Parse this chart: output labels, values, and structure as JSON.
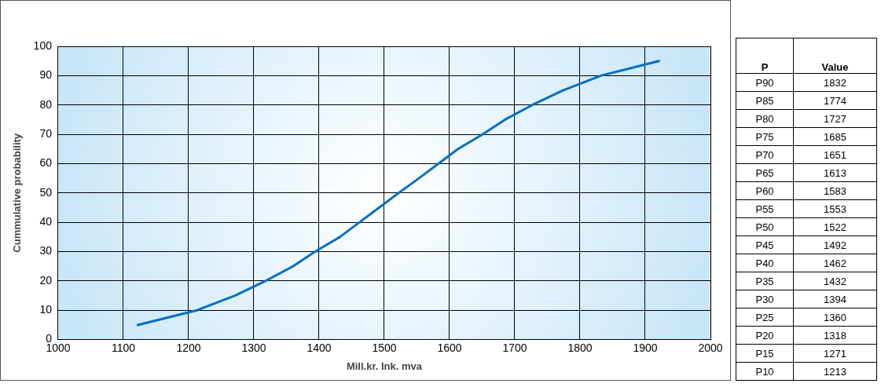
{
  "chart_data": [
    {
      "type": "line",
      "xlabel": "Mill.kr. Ink. mva",
      "ylabel": "Cummulative probability",
      "x": [
        1122,
        1213,
        1271,
        1318,
        1360,
        1394,
        1432,
        1462,
        1492,
        1522,
        1553,
        1583,
        1613,
        1651,
        1685,
        1727,
        1774,
        1832,
        1921
      ],
      "series": [
        {
          "color": "#0070c0",
          "values": [
            5,
            10,
            15,
            20,
            25,
            30,
            35,
            40,
            45,
            50,
            55,
            60,
            65,
            70,
            75,
            80,
            85,
            90,
            95
          ]
        }
      ],
      "xlim": [
        1000,
        2000
      ],
      "xticks": [
        1000,
        1100,
        1200,
        1300,
        1400,
        1500,
        1600,
        1700,
        1800,
        1900,
        2000
      ],
      "ylim": [
        0,
        100
      ],
      "yticks": [
        0,
        10,
        20,
        30,
        40,
        50,
        60,
        70,
        80,
        90,
        100
      ],
      "grid": true,
      "legend": false,
      "marker": "none",
      "line_style": "solid"
    },
    {
      "type": "other",
      "xlabel": "P",
      "ylabel": "Value",
      "categories": [
        "P90",
        "P85",
        "P80",
        "P75",
        "P70",
        "P65",
        "P60",
        "P55",
        "P50",
        "P45",
        "P40",
        "P35",
        "P30",
        "P25",
        "P20",
        "P15",
        "P10"
      ],
      "values": [
        1832,
        1774,
        1727,
        1685,
        1651,
        1613,
        1583,
        1553,
        1522,
        1492,
        1462,
        1432,
        1394,
        1360,
        1318,
        1271,
        1213
      ],
      "data_labels": true
    }
  ]
}
